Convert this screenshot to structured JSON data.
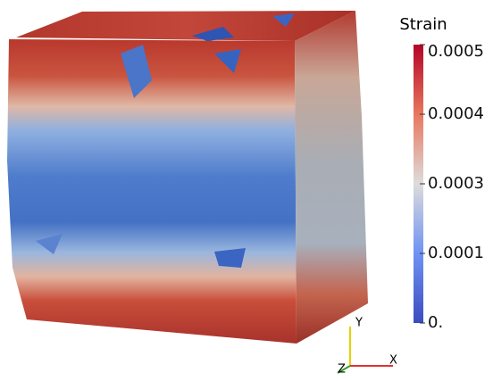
{
  "colorbar": {
    "title": "Strain",
    "range": [
      0,
      0.0005
    ],
    "ticks": [
      0.0005,
      {
        "value": 0.000375,
        "label": "0.0004"
      },
      {
        "value": 0.00025,
        "label": "0.0003"
      },
      {
        "value": 0.000125,
        "label": "0.0001"
      },
      {
        "value": 0,
        "label": "0."
      }
    ]
  },
  "axes_triad": {
    "y": "Y",
    "x": "X",
    "z": "Z"
  }
}
